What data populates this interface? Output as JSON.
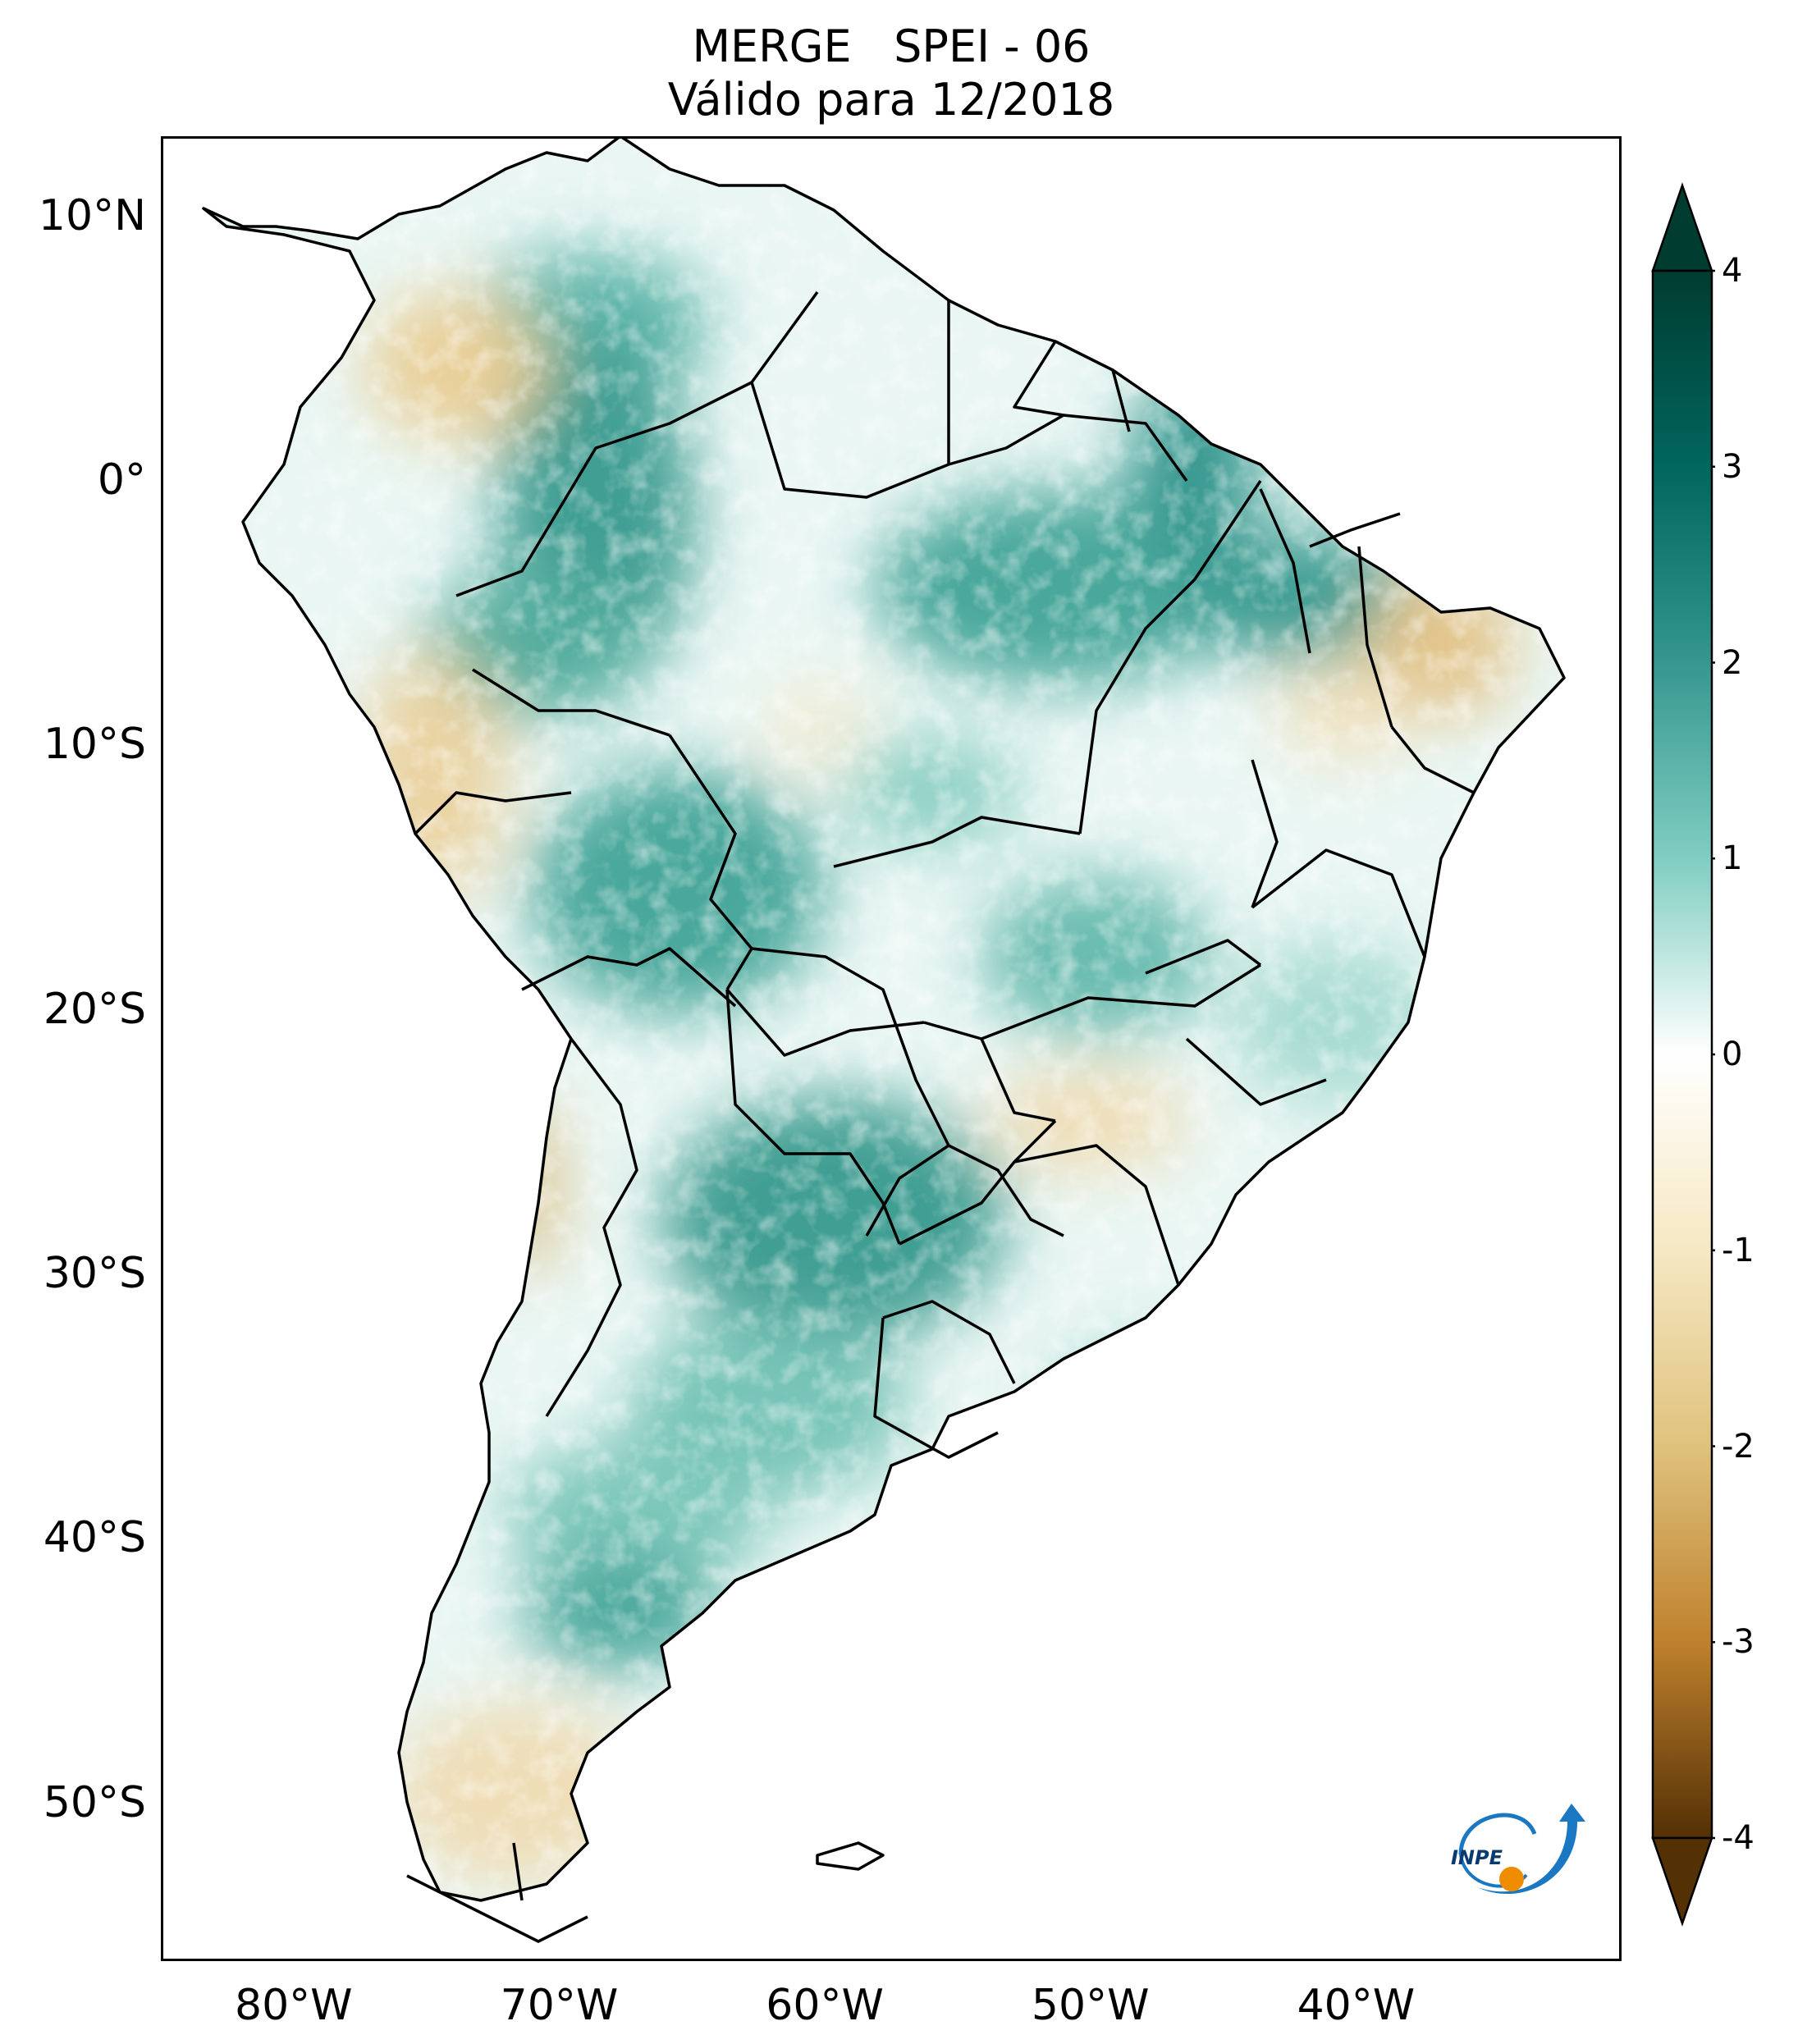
{
  "title": {
    "line1": "MERGE   SPEI - 06",
    "line2": "Válido para 12/2018"
  },
  "map": {
    "region": "South America",
    "variable": "SPEI - 06",
    "lat_range": [
      -56,
      13
    ],
    "lon_range": [
      -85,
      -30
    ],
    "lat_ticks": [
      {
        "value": 10,
        "label": "10°N"
      },
      {
        "value": 0,
        "label": "0°"
      },
      {
        "value": -10,
        "label": "10°S"
      },
      {
        "value": -20,
        "label": "20°S"
      },
      {
        "value": -30,
        "label": "30°S"
      },
      {
        "value": -40,
        "label": "40°S"
      },
      {
        "value": -50,
        "label": "50°S"
      }
    ],
    "lon_ticks": [
      {
        "value": -80,
        "label": "80°W"
      },
      {
        "value": -70,
        "label": "70°W"
      },
      {
        "value": -60,
        "label": "60°W"
      },
      {
        "value": -50,
        "label": "50°W"
      },
      {
        "value": -40,
        "label": "40°W"
      }
    ],
    "field_summary": "wet (positive SPEI) over Amazon basin, northern Brazil, Paraguay/northern Argentina and northern Patagonia; dry (negative SPEI) over central Colombia, Peru coast, Chilean coast, southern Patagonia, eastern Northeast Brazil and Paraná"
  },
  "colorbar": {
    "min": -4,
    "max": 4,
    "extend": "both",
    "ticks": [
      "4",
      "3",
      "2",
      "1",
      "0",
      "-1",
      "-2",
      "-3",
      "-4"
    ],
    "colormap": "BrBG",
    "colors": {
      "dark_brown": "#543005",
      "brown": "#8c510a",
      "tan": "#bf812d",
      "light_tan": "#dfc27d",
      "cream": "#f6e8c3",
      "neutral": "#ffffff",
      "light_teal": "#c7eae5",
      "mid_teal": "#80cdc1",
      "teal": "#35978f",
      "dark_teal": "#01665e",
      "deep_teal": "#003c30"
    }
  },
  "logo": {
    "text": "INPE",
    "colors": {
      "blue": "#1a78c2",
      "orange": "#f08c00"
    }
  }
}
